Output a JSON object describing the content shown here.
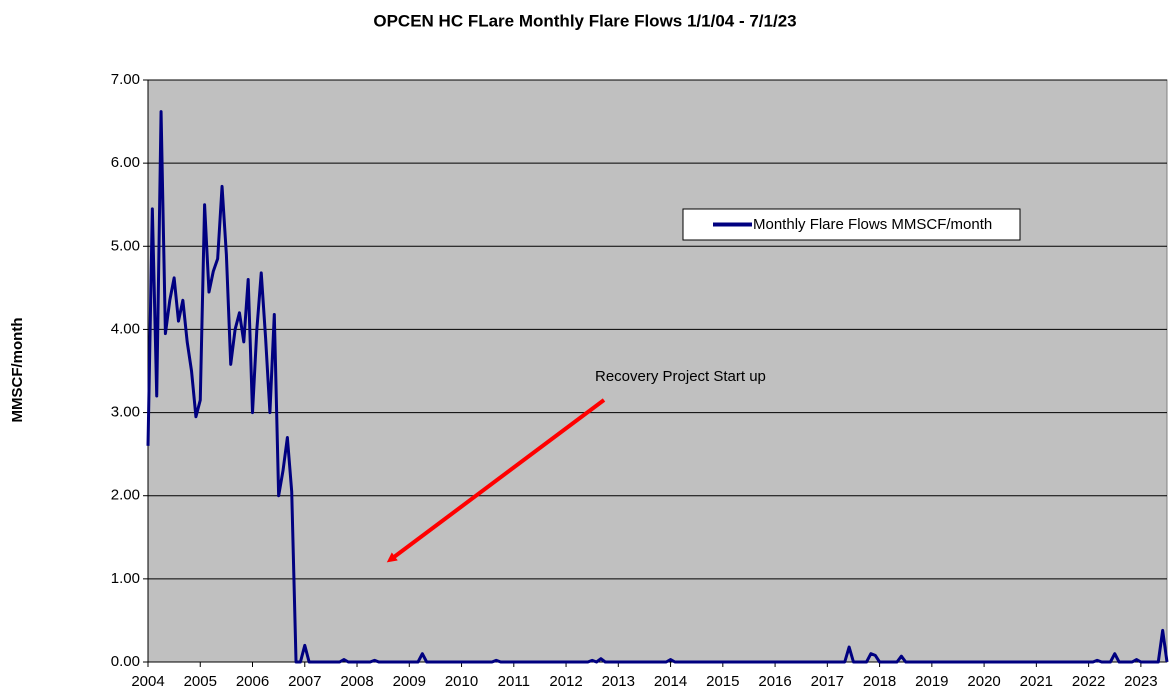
{
  "chart_data": {
    "type": "line",
    "title": "OPCEN HC FLare Monthly Flare Flows 1/1/04 - 7/1/23",
    "y_label": "MMSCF/month",
    "annotation": "Recovery Project Start up",
    "grid": true,
    "legend": "upper right",
    "background": "#c0c0c0",
    "xlim": [
      2004,
      2023.5
    ],
    "xticks": [
      2004,
      2005,
      2006,
      2007,
      2008,
      2009,
      2010,
      2011,
      2012,
      2013,
      2014,
      2015,
      2016,
      2017,
      2018,
      2019,
      2020,
      2021,
      2022,
      2023
    ],
    "ylim": [
      0,
      7
    ],
    "yticks": [
      {
        "value": 0,
        "label": "0.00"
      },
      {
        "value": 1,
        "label": "1.00"
      },
      {
        "value": 2,
        "label": "2.00"
      },
      {
        "value": 3,
        "label": "3.00"
      },
      {
        "value": 4,
        "label": "4.00"
      },
      {
        "value": 5,
        "label": "5.00"
      },
      {
        "value": 6,
        "label": "6.00"
      },
      {
        "value": 7,
        "label": "7.00"
      }
    ],
    "x": [
      2004,
      2004.083,
      2004.167,
      2004.25,
      2004.333,
      2004.417,
      2004.5,
      2004.583,
      2004.667,
      2004.75,
      2004.833,
      2004.917,
      2005,
      2005.083,
      2005.167,
      2005.25,
      2005.333,
      2005.417,
      2005.5,
      2005.583,
      2005.667,
      2005.75,
      2005.833,
      2005.917,
      2006,
      2006.083,
      2006.167,
      2006.25,
      2006.333,
      2006.417,
      2006.5,
      2006.583,
      2006.667,
      2006.75,
      2006.833,
      2006.917,
      2007,
      2007.083,
      2007.167,
      2007.25,
      2007.333,
      2007.417,
      2007.5,
      2007.583,
      2007.667,
      2007.75,
      2007.833,
      2007.917,
      2008,
      2008.083,
      2008.167,
      2008.25,
      2008.333,
      2008.417,
      2008.5,
      2008.583,
      2008.667,
      2008.75,
      2008.833,
      2008.917,
      2009,
      2009.083,
      2009.167,
      2009.25,
      2009.333,
      2009.417,
      2009.5,
      2009.583,
      2009.667,
      2009.75,
      2009.833,
      2009.917,
      2010,
      2010.083,
      2010.167,
      2010.25,
      2010.333,
      2010.417,
      2010.5,
      2010.583,
      2010.667,
      2010.75,
      2010.833,
      2010.917,
      2011,
      2011.083,
      2011.167,
      2011.25,
      2011.333,
      2011.417,
      2011.5,
      2011.583,
      2011.667,
      2011.75,
      2011.833,
      2011.917,
      2012,
      2012.083,
      2012.167,
      2012.25,
      2012.333,
      2012.417,
      2012.5,
      2012.583,
      2012.667,
      2012.75,
      2012.833,
      2012.917,
      2013,
      2013.083,
      2013.167,
      2013.25,
      2013.333,
      2013.417,
      2013.5,
      2013.583,
      2013.667,
      2013.75,
      2013.833,
      2013.917,
      2014,
      2014.083,
      2014.167,
      2014.25,
      2014.333,
      2014.417,
      2014.5,
      2014.583,
      2014.667,
      2014.75,
      2014.833,
      2014.917,
      2015,
      2015.083,
      2015.167,
      2015.25,
      2015.333,
      2015.417,
      2015.5,
      2015.583,
      2015.667,
      2015.75,
      2015.833,
      2015.917,
      2016,
      2016.083,
      2016.167,
      2016.25,
      2016.333,
      2016.417,
      2016.5,
      2016.583,
      2016.667,
      2016.75,
      2016.833,
      2016.917,
      2017,
      2017.083,
      2017.167,
      2017.25,
      2017.333,
      2017.417,
      2017.5,
      2017.583,
      2017.667,
      2017.75,
      2017.833,
      2017.917,
      2018,
      2018.083,
      2018.167,
      2018.25,
      2018.333,
      2018.417,
      2018.5,
      2018.583,
      2018.667,
      2018.75,
      2018.833,
      2018.917,
      2019,
      2019.083,
      2019.167,
      2019.25,
      2019.333,
      2019.417,
      2019.5,
      2019.583,
      2019.667,
      2019.75,
      2019.833,
      2019.917,
      2020,
      2020.083,
      2020.167,
      2020.25,
      2020.333,
      2020.417,
      2020.5,
      2020.583,
      2020.667,
      2020.75,
      2020.833,
      2020.917,
      2021,
      2021.083,
      2021.167,
      2021.25,
      2021.333,
      2021.417,
      2021.5,
      2021.583,
      2021.667,
      2021.75,
      2021.833,
      2021.917,
      2022,
      2022.083,
      2022.167,
      2022.25,
      2022.333,
      2022.417,
      2022.5,
      2022.583,
      2022.667,
      2022.75,
      2022.833,
      2022.917,
      2023,
      2023.083,
      2023.167,
      2023.25,
      2023.333,
      2023.417,
      2023.5
    ],
    "series": [
      {
        "name": "Monthly Flare Flows MMSCF/month",
        "color": "#000080",
        "values": [
          2.6,
          5.45,
          3.2,
          6.62,
          3.95,
          4.35,
          4.62,
          4.1,
          4.35,
          3.85,
          3.5,
          2.95,
          3.15,
          5.5,
          4.45,
          4.7,
          4.85,
          5.72,
          4.9,
          3.58,
          4.0,
          4.2,
          3.85,
          4.6,
          3.0,
          4.0,
          4.68,
          3.9,
          3.0,
          4.18,
          2.0,
          2.3,
          2.7,
          2.05,
          0,
          0,
          0.2,
          0,
          0,
          0,
          0,
          0,
          0,
          0,
          0,
          0.03,
          0,
          0,
          0,
          0,
          0,
          0,
          0.02,
          0,
          0,
          0,
          0,
          0,
          0,
          0,
          0,
          0,
          0,
          0.1,
          0,
          0,
          0,
          0,
          0,
          0,
          0,
          0,
          0,
          0,
          0,
          0,
          0,
          0,
          0,
          0,
          0.02,
          0,
          0,
          0,
          0,
          0,
          0,
          0,
          0,
          0,
          0,
          0,
          0,
          0,
          0,
          0,
          0,
          0,
          0,
          0,
          0,
          0,
          0.02,
          0,
          0.04,
          0,
          0,
          0,
          0,
          0,
          0,
          0,
          0,
          0,
          0,
          0,
          0,
          0,
          0,
          0,
          0.03,
          0,
          0,
          0,
          0,
          0,
          0,
          0,
          0,
          0,
          0,
          0,
          0,
          0,
          0,
          0,
          0,
          0,
          0,
          0,
          0,
          0,
          0,
          0,
          0,
          0,
          0,
          0,
          0,
          0,
          0,
          0,
          0,
          0,
          0,
          0,
          0,
          0,
          0,
          0,
          0,
          0.18,
          0,
          0,
          0,
          0,
          0.1,
          0.08,
          0,
          0,
          0,
          0,
          0,
          0.07,
          0,
          0,
          0,
          0,
          0,
          0,
          0,
          0,
          0,
          0,
          0,
          0,
          0,
          0,
          0,
          0,
          0,
          0,
          0,
          0,
          0,
          0,
          0,
          0,
          0,
          0,
          0,
          0,
          0,
          0,
          0,
          0,
          0,
          0,
          0,
          0,
          0,
          0,
          0,
          0,
          0,
          0,
          0,
          0,
          0.02,
          0,
          0,
          0,
          0.1,
          0,
          0,
          0,
          0,
          0.03,
          0,
          0,
          0,
          0,
          0,
          0.38,
          0
        ]
      }
    ]
  }
}
